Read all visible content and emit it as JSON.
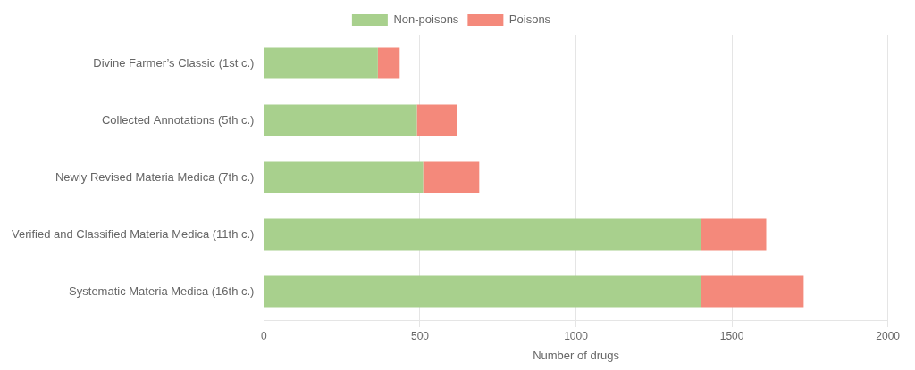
{
  "chart_data": {
    "type": "bar",
    "orientation": "horizontal",
    "stacked": true,
    "categories": [
      "Systematic Materia Medica (16th c.)",
      "Verified and Classified Materia Medica (11th c.)",
      "Newly Revised Materia Medica (7th c.)",
      "Collected Annotations (5th c.)",
      "Divine Farmer’s Classic (1st c.)"
    ],
    "series": [
      {
        "name": "Non-poisons",
        "color": "#a8d08d",
        "values": [
          1400,
          1400,
          510,
          490,
          365
        ]
      },
      {
        "name": "Poisons",
        "color": "#f4897b",
        "values": [
          330,
          210,
          180,
          130,
          70
        ]
      }
    ],
    "xlabel": "Number of drugs",
    "xlim": [
      0,
      2000
    ],
    "xticks": [
      0,
      500,
      1000,
      1500,
      2000
    ],
    "grid": true,
    "legend": "top"
  }
}
